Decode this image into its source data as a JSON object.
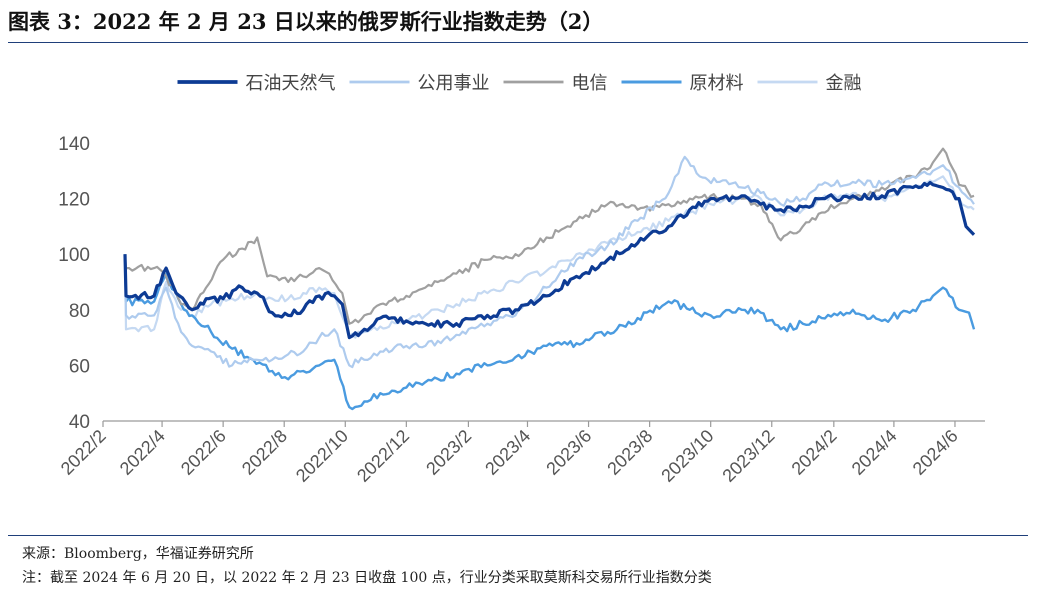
{
  "title": "图表 3：2022 年 2 月 23 日以来的俄罗斯行业指数走势（2）",
  "source": "来源：Bloomberg，华福证券研究所",
  "note": "注：截至 2024 年 6 月 20 日，以 2022 年 2 月 23 日收盘 100 点，行业分类采取莫斯科交易所行业指数分类",
  "chart_data": {
    "type": "line",
    "ylim": [
      40,
      140
    ],
    "yticks": [
      40,
      60,
      80,
      100,
      120,
      140
    ],
    "x_range": [
      "2022-02-01",
      "2024-07-01"
    ],
    "xticks": [
      "2022/2",
      "2022/4",
      "2022/6",
      "2022/8",
      "2022/10",
      "2022/12",
      "2023/2",
      "2023/4",
      "2023/6",
      "2023/8",
      "2023/10",
      "2023/12",
      "2024/2",
      "2024/4",
      "2024/6"
    ],
    "xtick_dates": [
      "2022-02-01",
      "2022-04-01",
      "2022-06-01",
      "2022-08-01",
      "2022-10-01",
      "2022-12-01",
      "2023-02-01",
      "2023-04-01",
      "2023-06-01",
      "2023-08-01",
      "2023-10-01",
      "2023-12-01",
      "2024-02-01",
      "2024-04-01",
      "2024-06-01"
    ],
    "legend_position": "top",
    "series": [
      {
        "name": "石油天然气",
        "color": "#0d3b94",
        "width": 3.2,
        "points": [
          [
            "2022-02-23",
            100
          ],
          [
            "2022-02-24",
            85
          ],
          [
            "2022-03-24",
            85
          ],
          [
            "2022-04-05",
            95
          ],
          [
            "2022-04-15",
            86
          ],
          [
            "2022-05-01",
            80
          ],
          [
            "2022-05-15",
            84
          ],
          [
            "2022-06-01",
            84
          ],
          [
            "2022-06-20",
            88
          ],
          [
            "2022-07-05",
            86
          ],
          [
            "2022-07-20",
            79
          ],
          [
            "2022-08-05",
            78
          ],
          [
            "2022-08-20",
            80
          ],
          [
            "2022-09-05",
            85
          ],
          [
            "2022-09-20",
            85
          ],
          [
            "2022-09-28",
            82
          ],
          [
            "2022-10-05",
            70
          ],
          [
            "2022-10-20",
            73
          ],
          [
            "2022-11-05",
            77
          ],
          [
            "2022-12-01",
            76
          ],
          [
            "2022-12-20",
            75
          ],
          [
            "2023-01-20",
            75
          ],
          [
            "2023-02-20",
            78
          ],
          [
            "2023-03-20",
            80
          ],
          [
            "2023-04-20",
            85
          ],
          [
            "2023-05-20",
            92
          ],
          [
            "2023-06-20",
            98
          ],
          [
            "2023-07-20",
            104
          ],
          [
            "2023-08-20",
            110
          ],
          [
            "2023-09-10",
            116
          ],
          [
            "2023-10-01",
            120
          ],
          [
            "2023-11-01",
            121
          ],
          [
            "2023-11-20",
            118
          ],
          [
            "2023-12-10",
            116
          ],
          [
            "2024-01-01",
            117
          ],
          [
            "2024-01-20",
            120
          ],
          [
            "2024-02-20",
            121
          ],
          [
            "2024-03-20",
            121
          ],
          [
            "2024-04-20",
            124
          ],
          [
            "2024-05-10",
            125
          ],
          [
            "2024-05-20",
            124
          ],
          [
            "2024-06-05",
            120
          ],
          [
            "2024-06-12",
            110
          ],
          [
            "2024-06-20",
            107
          ]
        ]
      },
      {
        "name": "公用事业",
        "color": "#aecbee",
        "width": 2.2,
        "points": [
          [
            "2022-02-23",
            100
          ],
          [
            "2022-02-24",
            78
          ],
          [
            "2022-03-24",
            78
          ],
          [
            "2022-04-05",
            88
          ],
          [
            "2022-04-20",
            72
          ],
          [
            "2022-05-01",
            67
          ],
          [
            "2022-05-20",
            65
          ],
          [
            "2022-06-10",
            60
          ],
          [
            "2022-07-01",
            62
          ],
          [
            "2022-07-20",
            62
          ],
          [
            "2022-08-05",
            64
          ],
          [
            "2022-08-20",
            65
          ],
          [
            "2022-09-05",
            70
          ],
          [
            "2022-09-20",
            73
          ],
          [
            "2022-10-05",
            60
          ],
          [
            "2022-10-20",
            62
          ],
          [
            "2022-11-05",
            65
          ],
          [
            "2022-12-01",
            67
          ],
          [
            "2022-12-20",
            67
          ],
          [
            "2023-01-20",
            71
          ],
          [
            "2023-02-20",
            75
          ],
          [
            "2023-03-20",
            78
          ],
          [
            "2023-04-20",
            88
          ],
          [
            "2023-05-20",
            98
          ],
          [
            "2023-06-20",
            103
          ],
          [
            "2023-07-20",
            112
          ],
          [
            "2023-08-20",
            122
          ],
          [
            "2023-09-05",
            135
          ],
          [
            "2023-09-20",
            128
          ],
          [
            "2023-10-10",
            126
          ],
          [
            "2023-11-01",
            124
          ],
          [
            "2023-11-20",
            122
          ],
          [
            "2023-12-10",
            118
          ],
          [
            "2024-01-01",
            120
          ],
          [
            "2024-01-20",
            125
          ],
          [
            "2024-02-20",
            126
          ],
          [
            "2024-03-20",
            125
          ],
          [
            "2024-04-20",
            128
          ],
          [
            "2024-05-10",
            130
          ],
          [
            "2024-05-20",
            132
          ],
          [
            "2024-06-05",
            124
          ],
          [
            "2024-06-20",
            118
          ]
        ]
      },
      {
        "name": "电信",
        "color": "#a0a0a0",
        "width": 2.2,
        "points": [
          [
            "2022-02-23",
            100
          ],
          [
            "2022-02-24",
            95
          ],
          [
            "2022-03-24",
            95
          ],
          [
            "2022-04-05",
            92
          ],
          [
            "2022-04-20",
            82
          ],
          [
            "2022-05-01",
            80
          ],
          [
            "2022-05-15",
            88
          ],
          [
            "2022-06-01",
            98
          ],
          [
            "2022-06-20",
            102
          ],
          [
            "2022-07-05",
            106
          ],
          [
            "2022-07-15",
            92
          ],
          [
            "2022-08-05",
            90
          ],
          [
            "2022-08-20",
            92
          ],
          [
            "2022-09-05",
            95
          ],
          [
            "2022-09-15",
            93
          ],
          [
            "2022-09-28",
            86
          ],
          [
            "2022-10-05",
            75
          ],
          [
            "2022-10-20",
            78
          ],
          [
            "2022-11-05",
            82
          ],
          [
            "2022-12-01",
            85
          ],
          [
            "2022-12-20",
            88
          ],
          [
            "2023-01-20",
            93
          ],
          [
            "2023-02-20",
            98
          ],
          [
            "2023-03-20",
            100
          ],
          [
            "2023-04-20",
            106
          ],
          [
            "2023-05-20",
            112
          ],
          [
            "2023-06-20",
            118
          ],
          [
            "2023-07-20",
            116
          ],
          [
            "2023-08-20",
            118
          ],
          [
            "2023-09-10",
            120
          ],
          [
            "2023-10-01",
            121
          ],
          [
            "2023-11-01",
            120
          ],
          [
            "2023-11-20",
            118
          ],
          [
            "2023-12-10",
            105
          ],
          [
            "2024-01-01",
            110
          ],
          [
            "2024-01-20",
            115
          ],
          [
            "2024-02-20",
            120
          ],
          [
            "2024-03-20",
            124
          ],
          [
            "2024-04-20",
            128
          ],
          [
            "2024-05-10",
            133
          ],
          [
            "2024-05-20",
            138
          ],
          [
            "2024-06-05",
            125
          ],
          [
            "2024-06-20",
            121
          ]
        ]
      },
      {
        "name": "原材料",
        "color": "#4a9be0",
        "width": 2.4,
        "points": [
          [
            "2022-02-23",
            100
          ],
          [
            "2022-02-24",
            83
          ],
          [
            "2022-03-24",
            83
          ],
          [
            "2022-04-05",
            93
          ],
          [
            "2022-04-20",
            82
          ],
          [
            "2022-05-01",
            78
          ],
          [
            "2022-05-20",
            72
          ],
          [
            "2022-06-10",
            66
          ],
          [
            "2022-07-01",
            62
          ],
          [
            "2022-07-20",
            58
          ],
          [
            "2022-08-05",
            55
          ],
          [
            "2022-08-20",
            58
          ],
          [
            "2022-09-05",
            60
          ],
          [
            "2022-09-20",
            62
          ],
          [
            "2022-10-05",
            45
          ],
          [
            "2022-10-20",
            47
          ],
          [
            "2022-11-05",
            50
          ],
          [
            "2022-12-01",
            52
          ],
          [
            "2022-12-20",
            54
          ],
          [
            "2023-01-20",
            57
          ],
          [
            "2023-02-20",
            60
          ],
          [
            "2023-03-20",
            63
          ],
          [
            "2023-04-20",
            67
          ],
          [
            "2023-05-20",
            68
          ],
          [
            "2023-06-20",
            72
          ],
          [
            "2023-07-20",
            77
          ],
          [
            "2023-08-20",
            83
          ],
          [
            "2023-09-10",
            80
          ],
          [
            "2023-10-01",
            78
          ],
          [
            "2023-11-01",
            80
          ],
          [
            "2023-11-20",
            79
          ],
          [
            "2023-12-10",
            73
          ],
          [
            "2024-01-01",
            75
          ],
          [
            "2024-01-20",
            77
          ],
          [
            "2024-02-20",
            80
          ],
          [
            "2024-03-20",
            76
          ],
          [
            "2024-04-20",
            80
          ],
          [
            "2024-05-10",
            85
          ],
          [
            "2024-05-20",
            88
          ],
          [
            "2024-06-05",
            80
          ],
          [
            "2024-06-15",
            79
          ],
          [
            "2024-06-20",
            73
          ]
        ]
      },
      {
        "name": "金融",
        "color": "#c5d9f2",
        "width": 2.2,
        "points": [
          [
            "2022-02-23",
            100
          ],
          [
            "2022-02-24",
            73
          ],
          [
            "2022-03-24",
            73
          ],
          [
            "2022-04-05",
            90
          ],
          [
            "2022-04-20",
            80
          ],
          [
            "2022-05-01",
            78
          ],
          [
            "2022-05-20",
            82
          ],
          [
            "2022-06-10",
            84
          ],
          [
            "2022-07-01",
            85
          ],
          [
            "2022-07-20",
            84
          ],
          [
            "2022-08-05",
            84
          ],
          [
            "2022-08-20",
            86
          ],
          [
            "2022-09-05",
            88
          ],
          [
            "2022-09-20",
            86
          ],
          [
            "2022-10-05",
            70
          ],
          [
            "2022-10-20",
            72
          ],
          [
            "2022-11-05",
            74
          ],
          [
            "2022-12-01",
            76
          ],
          [
            "2022-12-20",
            78
          ],
          [
            "2023-01-20",
            82
          ],
          [
            "2023-02-20",
            86
          ],
          [
            "2023-03-20",
            90
          ],
          [
            "2023-04-20",
            94
          ],
          [
            "2023-05-20",
            100
          ],
          [
            "2023-06-20",
            104
          ],
          [
            "2023-07-20",
            108
          ],
          [
            "2023-08-20",
            112
          ],
          [
            "2023-09-10",
            115
          ],
          [
            "2023-10-01",
            118
          ],
          [
            "2023-11-01",
            120
          ],
          [
            "2023-11-20",
            120
          ],
          [
            "2023-12-10",
            114
          ],
          [
            "2024-01-01",
            116
          ],
          [
            "2024-01-20",
            120
          ],
          [
            "2024-02-20",
            122
          ],
          [
            "2024-03-20",
            120
          ],
          [
            "2024-04-20",
            124
          ],
          [
            "2024-05-10",
            126
          ],
          [
            "2024-05-20",
            128
          ],
          [
            "2024-06-05",
            120
          ],
          [
            "2024-06-20",
            116
          ]
        ]
      }
    ]
  }
}
